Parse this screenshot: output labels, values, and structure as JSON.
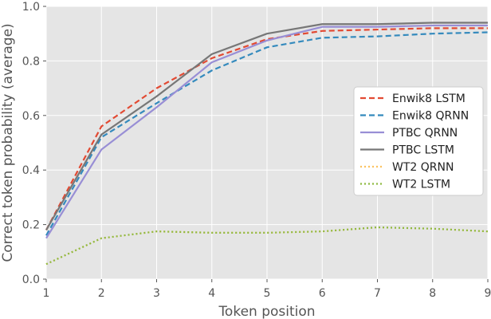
{
  "chart_data": {
    "type": "line",
    "title": "",
    "xlabel": "Token position",
    "ylabel": "Correct token probability (average)",
    "x": [
      1,
      2,
      3,
      4,
      5,
      6,
      7,
      8,
      9
    ],
    "xlim": [
      1,
      9
    ],
    "ylim": [
      0,
      1
    ],
    "xticks": [
      1,
      2,
      3,
      4,
      5,
      6,
      7,
      8,
      9
    ],
    "yticks": [
      0.0,
      0.2,
      0.4,
      0.6,
      0.8,
      1.0
    ],
    "ytick_labels": [
      "0.0",
      "0.2",
      "0.4",
      "0.6",
      "0.8",
      "1.0"
    ],
    "grid": true,
    "background": "#e5e5e5",
    "legend_position": "right",
    "series": [
      {
        "name": "Enwik8 LSTM",
        "color": "#e24a33",
        "style": "dashed",
        "values": [
          0.18,
          0.56,
          0.7,
          0.81,
          0.88,
          0.91,
          0.915,
          0.92,
          0.92
        ]
      },
      {
        "name": "Enwik8 QRNN",
        "color": "#348abd",
        "style": "dashed",
        "values": [
          0.16,
          0.52,
          0.645,
          0.765,
          0.85,
          0.885,
          0.89,
          0.9,
          0.905
        ]
      },
      {
        "name": "PTBC QRNN",
        "color": "#988ed5",
        "style": "solid",
        "values": [
          0.15,
          0.475,
          0.63,
          0.795,
          0.875,
          0.925,
          0.925,
          0.93,
          0.93
        ]
      },
      {
        "name": "PTBC LSTM",
        "color": "#777777",
        "style": "solid",
        "values": [
          0.18,
          0.53,
          0.67,
          0.825,
          0.9,
          0.935,
          0.935,
          0.94,
          0.94
        ]
      },
      {
        "name": "WT2 QRNN",
        "color": "#fbc15e",
        "style": "dotted",
        "values": [
          0.055,
          0.15,
          0.175,
          0.17,
          0.17,
          0.175,
          0.19,
          0.185,
          0.175
        ]
      },
      {
        "name": "WT2 LSTM",
        "color": "#8eba42",
        "style": "dotted",
        "values": [
          0.055,
          0.15,
          0.175,
          0.17,
          0.17,
          0.175,
          0.19,
          0.185,
          0.175
        ]
      }
    ]
  }
}
